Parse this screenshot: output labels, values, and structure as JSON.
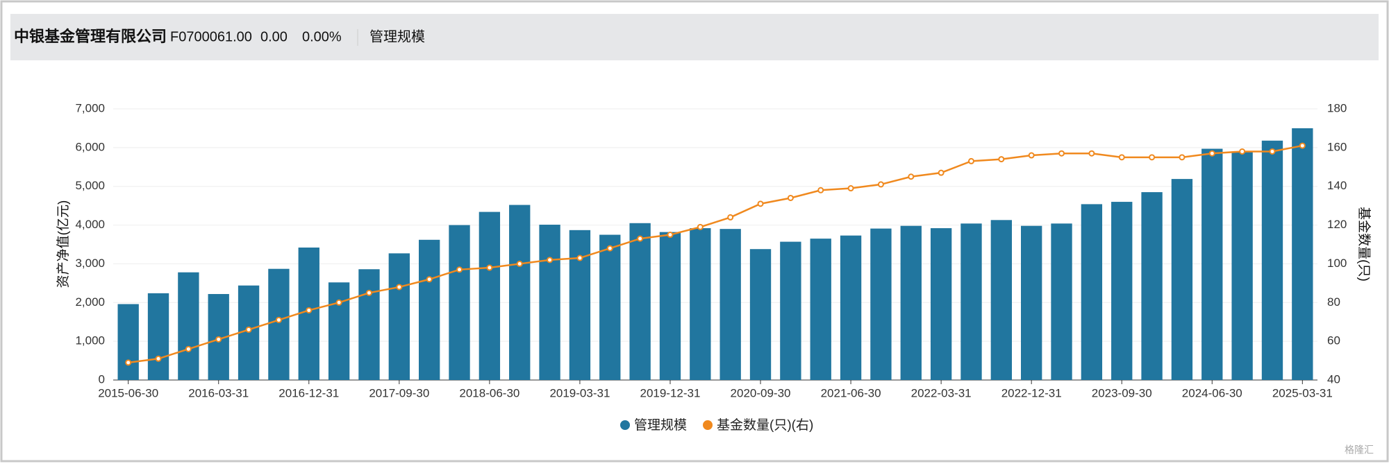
{
  "header": {
    "company": "中银基金管理有限公司",
    "code": "F0700061.00",
    "change": "0.00",
    "change_pct": "0.00%",
    "tab": "管理规模"
  },
  "chart_data": {
    "type": "bar",
    "y_label": "资产净值(亿元)",
    "y2_label": "基金数量(只)",
    "categories": [
      "2015-06-30",
      null,
      null,
      "2016-03-31",
      null,
      null,
      "2016-12-31",
      null,
      null,
      "2017-09-30",
      null,
      null,
      "2018-06-30",
      null,
      null,
      "2019-03-31",
      null,
      null,
      "2019-12-31",
      null,
      null,
      "2020-09-30",
      null,
      null,
      "2021-06-30",
      null,
      null,
      "2022-03-31",
      null,
      null,
      "2022-12-31",
      null,
      null,
      "2023-09-30",
      null,
      null,
      "2024-06-30",
      null,
      null,
      "2025-03-31"
    ],
    "series": [
      {
        "name": "管理规模",
        "type": "bar",
        "color": "#21769f",
        "values": [
          1960,
          2240,
          2780,
          2220,
          2440,
          2870,
          3420,
          2520,
          2860,
          3270,
          3620,
          4000,
          4340,
          4520,
          4010,
          3870,
          3750,
          4050,
          3820,
          3920,
          3900,
          3380,
          3570,
          3650,
          3730,
          3910,
          3980,
          3920,
          4040,
          4130,
          3980,
          4040,
          4540,
          4600,
          4850,
          5190,
          5970,
          5900,
          6180,
          6500
        ]
      },
      {
        "name": "基金数量(只)(右)",
        "type": "line",
        "axis": "y2",
        "color": "#f0891e",
        "values": [
          49,
          51,
          56,
          61,
          66,
          71,
          76,
          80,
          85,
          88,
          92,
          97,
          98,
          100,
          102,
          103,
          108,
          113,
          115,
          119,
          124,
          131,
          134,
          138,
          139,
          141,
          145,
          147,
          153,
          154,
          156,
          157,
          157,
          155,
          155,
          155,
          157,
          158,
          158,
          161
        ]
      }
    ],
    "ylim": [
      0,
      7000
    ],
    "yticks": [
      0,
      {
        "value": 1000,
        "label": "1,000"
      },
      {
        "value": 2000,
        "label": "2,000"
      },
      {
        "value": 3000,
        "label": "3,000"
      },
      {
        "value": 4000,
        "label": "4,000"
      },
      {
        "value": 5000,
        "label": "5,000"
      },
      {
        "value": 6000,
        "label": "6,000"
      },
      {
        "value": 7000,
        "label": "7,000"
      }
    ],
    "y2lim": [
      40,
      180
    ],
    "y2ticks": [
      40,
      60,
      80,
      100,
      120,
      140,
      160,
      180
    ],
    "grid": true,
    "legend": "bottom"
  },
  "watermark": "格隆汇"
}
